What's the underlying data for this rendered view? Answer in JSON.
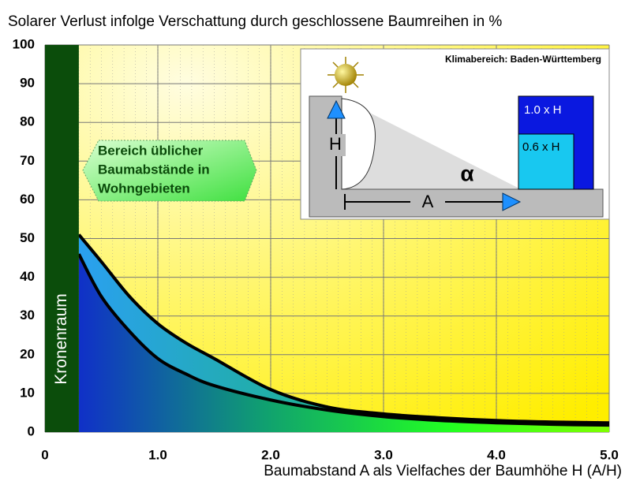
{
  "chart_data": {
    "type": "line",
    "title": "Solarer Verlust infolge Verschattung durch geschlossene Baumreihen in %",
    "x_label": "Baumabstand A als Vielfaches der Baumhöhe H (A/H)",
    "x": [
      0.3,
      0.5,
      0.75,
      1.0,
      1.25,
      1.5,
      2.0,
      2.5,
      3.0,
      3.5,
      4.0,
      4.5,
      5.0
    ],
    "series": [
      {
        "color": "#000000",
        "values": [
          51,
          44,
          35,
          28,
          23,
          19,
          11,
          6.5,
          4.7,
          3.7,
          3.0,
          2.6,
          2.4
        ]
      },
      {
        "color": "#000000",
        "values": [
          46,
          35,
          26,
          19,
          15,
          12,
          8.3,
          5.7,
          4.0,
          3.0,
          2.4,
          2.0,
          1.8
        ]
      }
    ],
    "xlim": [
      0,
      5
    ],
    "ylim": [
      0,
      100
    ],
    "xticks": [
      0,
      {
        "value": 1,
        "label": "1.0"
      },
      {
        "value": 2,
        "label": "2.0"
      },
      {
        "value": 3,
        "label": "3.0"
      },
      {
        "value": 4,
        "label": "4.0"
      },
      {
        "value": 5,
        "label": "5.0"
      }
    ],
    "yticks": [
      0,
      10,
      20,
      30,
      40,
      50,
      60,
      70,
      80,
      90,
      100
    ],
    "grid": true,
    "annotations": {
      "crown": "Kronenraum",
      "range": [
        "Bereich üblicher",
        "Baumabstände in",
        "Wohngebieten"
      ],
      "climate": "Klimabereich: Baden-Württemberg",
      "height": "H",
      "distance": "A",
      "angle": "α",
      "tall": "1.0 x H",
      "short": "0.6 x H"
    }
  }
}
